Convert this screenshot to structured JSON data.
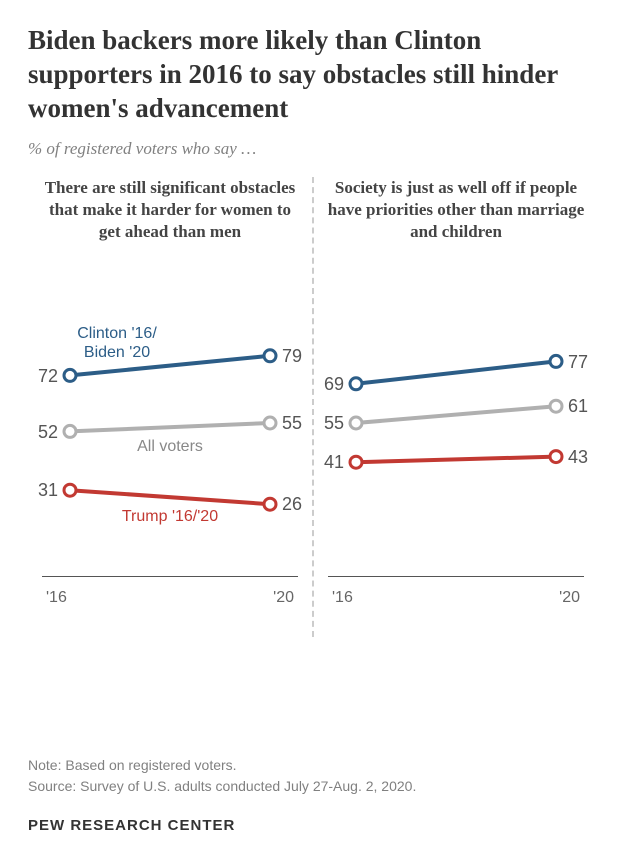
{
  "title": "Biden backers more likely than Clinton supporters in 2016 to say obstacles still hinder women's advancement",
  "subtitle": "% of registered voters who say …",
  "title_fontsize": 27,
  "subtitle_fontsize": 17,
  "panel_title_fontsize": 17,
  "value_fontsize": 18,
  "series_label_fontsize": 16,
  "xlabel_fontsize": 16,
  "note_fontsize": 14,
  "attribution_fontsize": 15,
  "colors": {
    "dem": "#2c5d87",
    "all": "#b0b0b0",
    "rep": "#c23932",
    "text": "#555555",
    "bg": "#ffffff"
  },
  "ylim": [
    0,
    100
  ],
  "x_categories": [
    "'16",
    "'20"
  ],
  "line_width": 4,
  "marker_radius": 6,
  "marker_stroke": 3,
  "marker_fill": "#ffffff",
  "panels": [
    {
      "title": "There are still significant obstacles that make it harder for women to get ahead than men",
      "series": [
        {
          "key": "dem",
          "values": [
            72,
            79
          ],
          "label": "Clinton '16/\nBiden '20",
          "label_color": "#2c5d87",
          "label_pos": "above-left"
        },
        {
          "key": "all",
          "values": [
            52,
            55
          ],
          "label": "All voters",
          "label_color": "#888888",
          "label_pos": "below-mid"
        },
        {
          "key": "rep",
          "values": [
            31,
            26
          ],
          "label": "Trump '16/'20",
          "label_color": "#c23932",
          "label_pos": "below-mid"
        }
      ]
    },
    {
      "title": "Society is just as well off if people have priorities other than marriage and children",
      "series": [
        {
          "key": "dem",
          "values": [
            69,
            77
          ]
        },
        {
          "key": "all",
          "values": [
            55,
            61
          ]
        },
        {
          "key": "rep",
          "values": [
            41,
            43
          ]
        }
      ]
    }
  ],
  "note": "Note: Based on registered voters.",
  "source": "Source: Survey of U.S. adults conducted July 27-Aug. 2, 2020.",
  "attribution": "PEW RESEARCH CENTER"
}
